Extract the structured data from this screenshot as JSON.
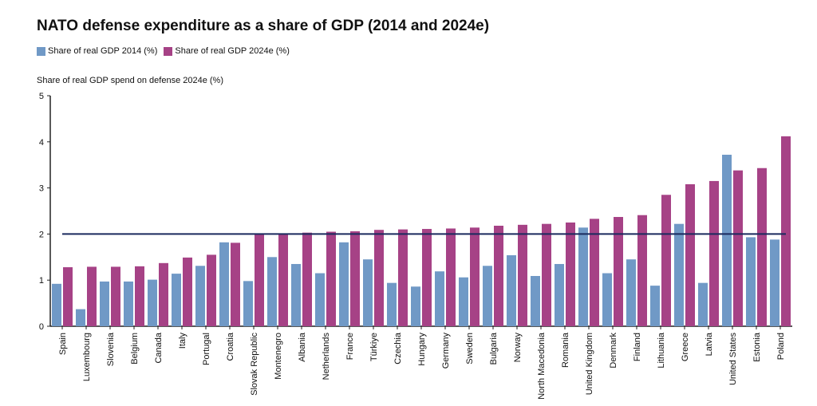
{
  "chart_data": {
    "type": "bar",
    "title": "NATO defense expenditure as a share of GDP (2014 and 2024e)",
    "ylabel": "Share of real GDP spend on defense 2024e (%)",
    "xlabel": "",
    "ylim": [
      0,
      5
    ],
    "yticks": [
      "0",
      "1",
      "2",
      "3",
      "4",
      "5"
    ],
    "grid": false,
    "legend_position": "top-left",
    "reference_line": {
      "y": 2,
      "color": "#1a2a5e"
    },
    "categories": [
      "Spain",
      "Luxembourg",
      "Slovenia",
      "Belgium",
      "Canada",
      "Italy",
      "Portugal",
      "Croatia",
      "Slovak Republic",
      "Montenegro",
      "Albania",
      "Netherlands",
      "France",
      "Türkiye",
      "Czechia",
      "Hungary",
      "Germany",
      "Sweden",
      "Bulgaria",
      "Norway",
      "North Macedonia",
      "Romania",
      "United Kingdom",
      "Denmark",
      "Finland",
      "Lithuania",
      "Greece",
      "Latvia",
      "United States",
      "Estonia",
      "Poland"
    ],
    "series": [
      {
        "name": "Share of real GDP 2014 (%)",
        "color": "#7099c6",
        "values": [
          0.92,
          0.37,
          0.97,
          0.97,
          1.01,
          1.14,
          1.31,
          1.82,
          0.98,
          1.5,
          1.35,
          1.15,
          1.82,
          1.45,
          0.94,
          0.86,
          1.19,
          1.06,
          1.31,
          1.54,
          1.09,
          1.35,
          2.14,
          1.15,
          1.45,
          0.88,
          2.22,
          0.94,
          3.72,
          1.93,
          1.88
        ]
      },
      {
        "name": "Share of real GDP 2024e (%)",
        "color": "#a64286",
        "values": [
          1.28,
          1.29,
          1.29,
          1.3,
          1.37,
          1.49,
          1.55,
          1.81,
          2.0,
          2.0,
          2.03,
          2.05,
          2.06,
          2.09,
          2.1,
          2.11,
          2.12,
          2.14,
          2.18,
          2.2,
          2.22,
          2.25,
          2.33,
          2.37,
          2.41,
          2.85,
          3.08,
          3.15,
          3.38,
          3.43,
          4.12
        ]
      }
    ]
  }
}
